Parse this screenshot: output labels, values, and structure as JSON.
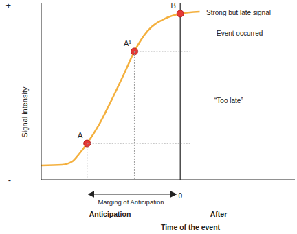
{
  "chart_data": {
    "type": "line",
    "x": [
      -20,
      -17,
      -15.5,
      -14.6,
      -13.4,
      -11.6,
      -9.6,
      -8.1,
      -6.6,
      -4.7,
      -2.2,
      0,
      2.8
    ],
    "values": [
      8.2,
      8.6,
      10.5,
      14.4,
      20.6,
      31.9,
      47.5,
      59.9,
      72.8,
      84.4,
      91.4,
      94.2,
      95.3
    ],
    "color": "#f4b03e",
    "xlim": [
      -20,
      16.5
    ],
    "xticks": [
      0
    ],
    "ylim": [
      0,
      100
    ],
    "yticks": [
      {
        "value": 0,
        "label": "-"
      },
      {
        "value": 100,
        "label": "+"
      }
    ],
    "grid": false,
    "y_label": "Signal intensity",
    "x_label": "Time of the event",
    "points": [
      {
        "label": "A",
        "x": -13.4,
        "y": 20.6
      },
      {
        "label": "A¹",
        "x": -6.6,
        "y": 72.8
      },
      {
        "label": "B",
        "x": 0,
        "y": 94.2
      }
    ],
    "event": {
      "x": 0,
      "label": "Event occurred"
    },
    "annotations": {
      "strong_signal": "Strong but late signal",
      "too_late": "“Too late”",
      "margin": "Marging of Anticipation",
      "before": "Anticipation",
      "after": "After"
    }
  }
}
